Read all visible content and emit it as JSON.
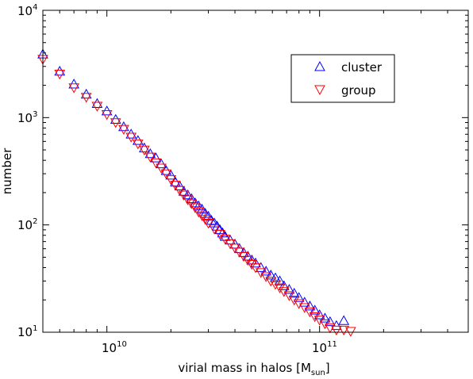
{
  "chart_data": {
    "type": "scatter",
    "x_scale": "log",
    "y_scale": "log",
    "xlim": [
      5000000000.0,
      500000000000.0
    ],
    "ylim": [
      10,
      10000
    ],
    "xlabel": "virial mass in halos [M",
    "xlabel_sub": "sun",
    "xlabel_end": "]",
    "ylabel": "number",
    "x_ticks": [
      {
        "value": 10000000000.0,
        "base": "10",
        "exp": "10"
      },
      {
        "value": 100000000000.0,
        "base": "10",
        "exp": "11"
      }
    ],
    "y_ticks": [
      {
        "value": 10,
        "base": "10",
        "exp": "1"
      },
      {
        "value": 100,
        "base": "10",
        "exp": "2"
      },
      {
        "value": 1000,
        "base": "10",
        "exp": "3"
      },
      {
        "value": 10000,
        "base": "10",
        "exp": "4"
      }
    ],
    "grid": false,
    "legend_position": "top-right",
    "series": [
      {
        "name": "cluster",
        "marker": "triangle-up",
        "color": "#0000ff",
        "x": [
          5000000000.0,
          6000000000.0,
          7000000000.0,
          8000000000.0,
          9000000000.0,
          10000000000.0,
          11000000000.0,
          12000000000.0,
          13000000000.0,
          14000000000.0,
          15000000000.0,
          16000000000.0,
          17000000000.0,
          18000000000.0,
          19000000000.0,
          20000000000.0,
          21000000000.0,
          22000000000.0,
          23000000000.0,
          24000000000.0,
          25000000000.0,
          26000000000.0,
          27000000000.0,
          28000000000.0,
          29000000000.0,
          30000000000.0,
          31000000000.0,
          32000000000.0,
          33000000000.0,
          34000000000.0,
          35000000000.0,
          36000000000.0,
          38000000000.0,
          40000000000.0,
          42000000000.0,
          44000000000.0,
          46000000000.0,
          48000000000.0,
          50000000000.0,
          53000000000.0,
          56000000000.0,
          59000000000.0,
          62000000000.0,
          65000000000.0,
          68000000000.0,
          72000000000.0,
          76000000000.0,
          80000000000.0,
          85000000000.0,
          90000000000.0,
          95000000000.0,
          100000000000.0,
          106000000000.0,
          112000000000.0,
          120000000000.0,
          130000000000.0
        ],
        "y": [
          3900,
          2700,
          2050,
          1650,
          1350,
          1150,
          960,
          820,
          700,
          610,
          520,
          460,
          420,
          370,
          320,
          290,
          250,
          230,
          205,
          190,
          175,
          160,
          150,
          140,
          128,
          120,
          110,
          104,
          97,
          90,
          84,
          78,
          72,
          66,
          60,
          55,
          51,
          47,
          44,
          40,
          37,
          34,
          32,
          30,
          27,
          25,
          23,
          21,
          19,
          17.5,
          16,
          14.5,
          13.5,
          12.5,
          11.5,
          12.8
        ]
      },
      {
        "name": "group",
        "marker": "triangle-down",
        "color": "#ff0000",
        "x": [
          5000000000.0,
          6000000000.0,
          7000000000.0,
          8000000000.0,
          9000000000.0,
          10000000000.0,
          11000000000.0,
          12000000000.0,
          13000000000.0,
          14000000000.0,
          15000000000.0,
          16000000000.0,
          17000000000.0,
          18000000000.0,
          19000000000.0,
          20000000000.0,
          21000000000.0,
          22000000000.0,
          23000000000.0,
          24000000000.0,
          25000000000.0,
          26000000000.0,
          27000000000.0,
          28000000000.0,
          29000000000.0,
          30000000000.0,
          32000000000.0,
          34000000000.0,
          36000000000.0,
          38000000000.0,
          40000000000.0,
          42000000000.0,
          44000000000.0,
          46000000000.0,
          48000000000.0,
          50000000000.0,
          53000000000.0,
          56000000000.0,
          59000000000.0,
          62000000000.0,
          65000000000.0,
          68000000000.0,
          72000000000.0,
          76000000000.0,
          80000000000.0,
          85000000000.0,
          90000000000.0,
          95000000000.0,
          100000000000.0,
          106000000000.0,
          112000000000.0,
          120000000000.0,
          130000000000.0,
          140000000000.0
        ],
        "y": [
          3500,
          2550,
          1900,
          1550,
          1280,
          1070,
          900,
          780,
          660,
          570,
          500,
          430,
          380,
          340,
          300,
          265,
          235,
          210,
          190,
          172,
          158,
          145,
          132,
          122,
          113,
          104,
          92,
          82,
          74,
          67,
          61,
          56,
          51,
          47,
          43,
          40,
          36,
          33,
          30,
          28,
          26,
          24,
          22,
          20,
          18.5,
          17,
          15.5,
          14,
          13,
          12,
          11,
          10.5,
          10.5,
          10.2
        ]
      }
    ]
  }
}
